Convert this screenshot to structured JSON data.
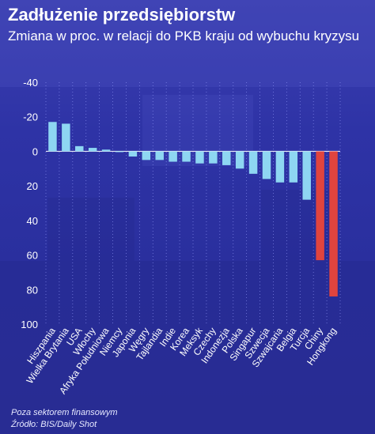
{
  "header": {
    "title": "Zadłużenie przedsiębiorstw",
    "subtitle": "Zmiana w proc. w relacji do PKB kraju od wybuchu kryzysu"
  },
  "footer": {
    "note": "Poza sektorem finansowym",
    "source": "Źródło: BIS/Daily Shot"
  },
  "colors": {
    "background": "#2e33a6",
    "bar_light": "#8ed6f2",
    "bar_highlight": "#e0443e",
    "text": "#ffffff"
  },
  "chart_data": {
    "type": "bar",
    "title": "Zadłużenie przedsiębiorstw",
    "subtitle": "Zmiana w proc. w relacji do PKB kraju od wybuchu kryzysu",
    "xlabel": "",
    "ylabel": "",
    "y_axis_inverted": true,
    "ylim": [
      -40,
      100
    ],
    "yticks": [
      -40,
      -20,
      0,
      20,
      40,
      60,
      80,
      100
    ],
    "grid": "vertical dotted lines",
    "categories": [
      "Hiszpania",
      "Wielka Brytania",
      "USA",
      "Włochy",
      "Afryka Południowa",
      "Niemcy",
      "Japonia",
      "Węgry",
      "Tajlandia",
      "Indie",
      "Korea",
      "Meksyk",
      "Czechy",
      "Indonezja",
      "Polska",
      "Singapur",
      "Szwecja",
      "Szwajcaria",
      "Belgia",
      "Turcja",
      "Chiny",
      "Hongkong"
    ],
    "values": [
      -17,
      -16,
      -3,
      -2,
      -1,
      0,
      3,
      5,
      5,
      6,
      6,
      7,
      7,
      8,
      10,
      13,
      16,
      18,
      18,
      28,
      63,
      84
    ],
    "highlighted": [
      "Chiny",
      "Hongkong"
    ]
  }
}
